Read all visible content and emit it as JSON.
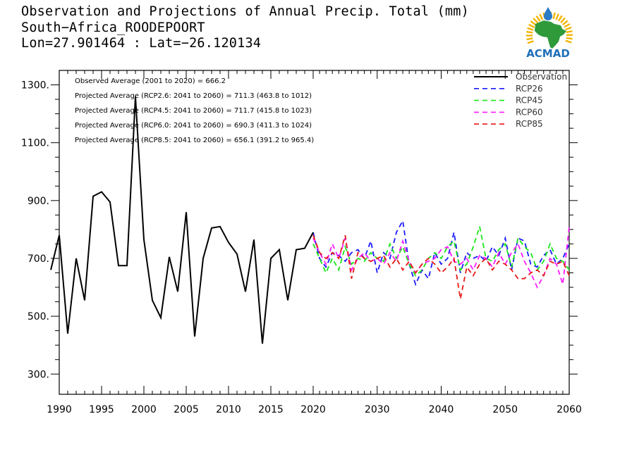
{
  "title": {
    "line1": "Observation and Projections of Annual Precip. Total (mm)",
    "line2": "South−Africa_ROODEPOORT",
    "line3": "Lon=27.901464 : Lat=−26.120134"
  },
  "logo": {
    "text": "ACMAD",
    "colors": {
      "africa": "#2e9a3a",
      "drop": "#2a7cc7",
      "sun": "#f2b400",
      "text": "#1e6fb8"
    }
  },
  "chart_data": {
    "type": "line",
    "xlim": [
      1990,
      2060
    ],
    "ylim": [
      230,
      1350
    ],
    "x_ticks_labeled": [
      1990,
      1995,
      2000,
      2005,
      2010,
      2015,
      2020,
      2030,
      2040,
      2050,
      2060
    ],
    "y_ticks_labeled": [
      300,
      500,
      700,
      900,
      1100,
      1300
    ],
    "y_tick_labels": [
      "300.",
      "500.",
      "700.",
      "900.",
      "1100.",
      "1300."
    ],
    "grid": false,
    "legend_position": "top-right",
    "annotations": [
      "Observed Average (2001 to 2020) = 666.2",
      "Projected Average (RCP2.6: 2041 to 2060) = 711.3 (463.8 to 1012)",
      "Projected Average (RCP4.5: 2041 to 2060) = 711.7 (415.8 to 1023)",
      "Projected Average (RCP6.0: 2041 to 2060) = 690.3 (411.3 to 1024)",
      "Projected Average (RCP8.5: 2041 to 2060) = 656.1 (391.2 to 965.4)"
    ],
    "series": [
      {
        "name": "Observation",
        "color": "#000000",
        "dashed": false,
        "x": [
          1989,
          1990,
          1991,
          1992,
          1993,
          1994,
          1995,
          1996,
          1997,
          1998,
          1999,
          2000,
          2001,
          2002,
          2003,
          2004,
          2005,
          2006,
          2007,
          2008,
          2009,
          2010,
          2011,
          2012,
          2013,
          2014,
          2015,
          2016,
          2017,
          2018,
          2019,
          2020
        ],
        "values": [
          660,
          780,
          440,
          700,
          555,
          915,
          930,
          895,
          675,
          675,
          1260,
          765,
          555,
          495,
          705,
          585,
          860,
          430,
          700,
          805,
          810,
          755,
          715,
          585,
          765,
          405,
          700,
          730,
          555,
          730,
          735,
          790
        ]
      },
      {
        "name": "RCP26",
        "color": "#1a1aff",
        "dashed": true,
        "x": [
          2020,
          2021,
          2022,
          2023,
          2024,
          2025,
          2026,
          2027,
          2028,
          2029,
          2030,
          2031,
          2032,
          2033,
          2034,
          2035,
          2036,
          2037,
          2038,
          2039,
          2040,
          2041,
          2042,
          2043,
          2044,
          2045,
          2046,
          2047,
          2048,
          2049,
          2050,
          2051,
          2052,
          2053,
          2054,
          2055,
          2056,
          2057,
          2058,
          2059,
          2060
        ],
        "values": [
          790,
          700,
          670,
          720,
          710,
          690,
          720,
          730,
          700,
          760,
          650,
          720,
          700,
          790,
          830,
          680,
          610,
          660,
          630,
          720,
          680,
          700,
          790,
          650,
          720,
          700,
          710,
          690,
          740,
          710,
          770,
          660,
          770,
          760,
          680,
          670,
          710,
          730,
          680,
          700,
          750
        ]
      },
      {
        "name": "RCP45",
        "color": "#19e619",
        "dashed": true,
        "x": [
          2020,
          2021,
          2022,
          2023,
          2024,
          2025,
          2026,
          2027,
          2028,
          2029,
          2030,
          2031,
          2032,
          2033,
          2034,
          2035,
          2036,
          2037,
          2038,
          2039,
          2040,
          2041,
          2042,
          2043,
          2044,
          2045,
          2046,
          2047,
          2048,
          2049,
          2050,
          2051,
          2052,
          2053,
          2054,
          2055,
          2056,
          2057,
          2058,
          2059,
          2060
        ],
        "values": [
          750,
          700,
          650,
          700,
          660,
          740,
          680,
          700,
          690,
          720,
          700,
          690,
          750,
          700,
          740,
          680,
          640,
          660,
          700,
          720,
          700,
          740,
          760,
          660,
          680,
          740,
          810,
          700,
          690,
          730,
          750,
          670,
          770,
          740,
          720,
          660,
          690,
          750,
          700,
          690,
          660
        ]
      },
      {
        "name": "RCP60",
        "color": "#ff19ff",
        "dashed": true,
        "x": [
          2020,
          2021,
          2022,
          2023,
          2024,
          2025,
          2026,
          2027,
          2028,
          2029,
          2030,
          2031,
          2032,
          2033,
          2034,
          2035,
          2036,
          2037,
          2038,
          2039,
          2040,
          2041,
          2042,
          2043,
          2044,
          2045,
          2046,
          2047,
          2048,
          2049,
          2050,
          2051,
          2052,
          2053,
          2054,
          2055,
          2056,
          2057,
          2058,
          2059,
          2060
        ],
        "values": [
          770,
          720,
          680,
          750,
          700,
          770,
          660,
          700,
          720,
          690,
          700,
          680,
          720,
          690,
          760,
          690,
          650,
          680,
          690,
          700,
          730,
          740,
          690,
          680,
          700,
          660,
          710,
          700,
          670,
          720,
          680,
          720,
          750,
          690,
          650,
          600,
          640,
          700,
          680,
          610,
          810
        ]
      },
      {
        "name": "RCP85",
        "color": "#e61919",
        "dashed": true,
        "x": [
          2020,
          2021,
          2022,
          2023,
          2024,
          2025,
          2026,
          2027,
          2028,
          2029,
          2030,
          2031,
          2032,
          2033,
          2034,
          2035,
          2036,
          2037,
          2038,
          2039,
          2040,
          2041,
          2042,
          2043,
          2044,
          2045,
          2046,
          2047,
          2048,
          2049,
          2050,
          2051,
          2052,
          2053,
          2054,
          2055,
          2056,
          2057,
          2058,
          2059,
          2060
        ],
        "values": [
          780,
          720,
          700,
          720,
          700,
          780,
          630,
          720,
          700,
          690,
          700,
          710,
          670,
          700,
          660,
          690,
          650,
          680,
          700,
          680,
          650,
          670,
          700,
          560,
          670,
          640,
          680,
          700,
          660,
          690,
          680,
          660,
          630,
          630,
          650,
          660,
          640,
          690,
          680,
          690,
          640
        ]
      }
    ]
  }
}
